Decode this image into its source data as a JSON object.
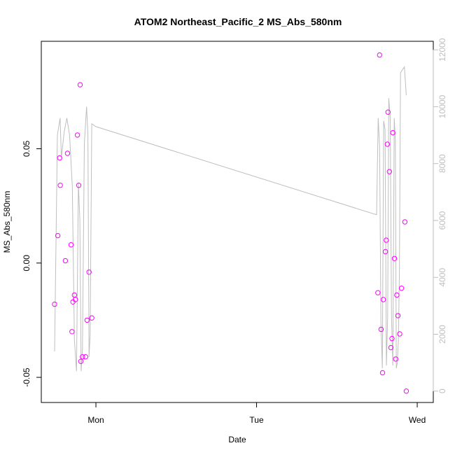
{
  "chart_data": {
    "type": "scatter",
    "title": "ATOM2 Northeast_Pacific_2 MS_Abs_580nm",
    "xlabel": "Date",
    "ylabel": "MS_Abs_580nm",
    "x_ticks": [
      {
        "label": "Mon",
        "day": 0
      },
      {
        "label": "Tue",
        "day": 1
      },
      {
        "label": "Wed",
        "day": 2
      }
    ],
    "x_range_days": [
      -0.34,
      2.1
    ],
    "y_ticks": [
      -0.05,
      0.0,
      0.05
    ],
    "y_tick_labels": [
      "-0.05",
      "0.00",
      "0.05"
    ],
    "ylim": [
      -0.061,
      0.097
    ],
    "y2_ticks": [
      0,
      2000,
      4000,
      6000,
      8000,
      10000,
      12000
    ],
    "y2_tick_labels": [
      "0",
      "2000",
      "4000",
      "6000",
      "8000",
      "10000",
      "12000"
    ],
    "y2lim": [
      -400,
      12300
    ],
    "point_color": "#ff00ff",
    "line_color": "#bebebe",
    "points": [
      {
        "day": -0.257,
        "y": -0.018
      },
      {
        "day": -0.237,
        "y": 0.012
      },
      {
        "day": -0.226,
        "y": 0.046
      },
      {
        "day": -0.222,
        "y": 0.034
      },
      {
        "day": -0.19,
        "y": 0.001
      },
      {
        "day": -0.177,
        "y": 0.048
      },
      {
        "day": -0.155,
        "y": 0.008
      },
      {
        "day": -0.149,
        "y": -0.03
      },
      {
        "day": -0.143,
        "y": -0.017
      },
      {
        "day": -0.134,
        "y": -0.014
      },
      {
        "day": -0.128,
        "y": -0.016
      },
      {
        "day": -0.115,
        "y": 0.056
      },
      {
        "day": -0.107,
        "y": 0.034
      },
      {
        "day": -0.098,
        "y": 0.078
      },
      {
        "day": -0.094,
        "y": -0.043
      },
      {
        "day": -0.084,
        "y": -0.041
      },
      {
        "day": -0.064,
        "y": -0.041
      },
      {
        "day": -0.055,
        "y": -0.025
      },
      {
        "day": -0.043,
        "y": -0.004
      },
      {
        "day": -0.026,
        "y": -0.024
      },
      {
        "day": 1.755,
        "y": -0.013
      },
      {
        "day": 1.766,
        "y": 0.091
      },
      {
        "day": 1.775,
        "y": -0.029
      },
      {
        "day": 1.784,
        "y": -0.048
      },
      {
        "day": 1.789,
        "y": -0.016
      },
      {
        "day": 1.802,
        "y": 0.005
      },
      {
        "day": 1.807,
        "y": 0.01
      },
      {
        "day": 1.814,
        "y": 0.052
      },
      {
        "day": 1.818,
        "y": 0.066
      },
      {
        "day": 1.827,
        "y": 0.04
      },
      {
        "day": 1.836,
        "y": -0.037
      },
      {
        "day": 1.843,
        "y": -0.033
      },
      {
        "day": 1.848,
        "y": 0.057
      },
      {
        "day": 1.858,
        "y": 0.002
      },
      {
        "day": 1.866,
        "y": -0.042
      },
      {
        "day": 1.873,
        "y": -0.014
      },
      {
        "day": 1.88,
        "y": -0.023
      },
      {
        "day": 1.891,
        "y": -0.031
      },
      {
        "day": 1.902,
        "y": -0.011
      },
      {
        "day": 1.923,
        "y": 0.018
      },
      {
        "day": 1.932,
        "y": -0.056
      }
    ],
    "line_series": [
      {
        "day": -0.257,
        "v": 1400
      },
      {
        "day": -0.24,
        "v": 9000
      },
      {
        "day": -0.223,
        "v": 9600
      },
      {
        "day": -0.215,
        "v": 8200
      },
      {
        "day": -0.198,
        "v": 9100
      },
      {
        "day": -0.181,
        "v": 9600
      },
      {
        "day": -0.164,
        "v": 9000
      },
      {
        "day": -0.147,
        "v": 7200
      },
      {
        "day": -0.134,
        "v": 1800
      },
      {
        "day": -0.121,
        "v": 700
      },
      {
        "day": -0.109,
        "v": 7300
      },
      {
        "day": -0.1,
        "v": 6000
      },
      {
        "day": -0.092,
        "v": 700
      },
      {
        "day": -0.084,
        "v": 1500
      },
      {
        "day": -0.072,
        "v": 8700
      },
      {
        "day": -0.058,
        "v": 10000
      },
      {
        "day": -0.05,
        "v": 9000
      },
      {
        "day": -0.043,
        "v": 1200
      },
      {
        "day": -0.036,
        "v": 2000
      },
      {
        "day": -0.026,
        "v": 9400
      },
      {
        "day": 0.0,
        "v": 9300
      },
      {
        "day": 1.747,
        "v": 6200
      },
      {
        "day": 1.757,
        "v": 9600
      },
      {
        "day": 1.766,
        "v": 8600
      },
      {
        "day": 1.774,
        "v": 2400
      },
      {
        "day": 1.783,
        "v": 800
      },
      {
        "day": 1.791,
        "v": 9500
      },
      {
        "day": 1.8,
        "v": 9200
      },
      {
        "day": 1.808,
        "v": 900
      },
      {
        "day": 1.816,
        "v": 2600
      },
      {
        "day": 1.823,
        "v": 10300
      },
      {
        "day": 1.832,
        "v": 9600
      },
      {
        "day": 1.84,
        "v": 2600
      },
      {
        "day": 1.848,
        "v": 900
      },
      {
        "day": 1.857,
        "v": 9600
      },
      {
        "day": 1.864,
        "v": 8800
      },
      {
        "day": 1.87,
        "v": 800
      },
      {
        "day": 1.876,
        "v": 1000
      },
      {
        "day": 1.883,
        "v": 1800
      },
      {
        "day": 1.889,
        "v": 4200
      },
      {
        "day": 1.896,
        "v": 11200
      },
      {
        "day": 1.92,
        "v": 11400
      },
      {
        "day": 1.932,
        "v": 10400
      }
    ]
  }
}
